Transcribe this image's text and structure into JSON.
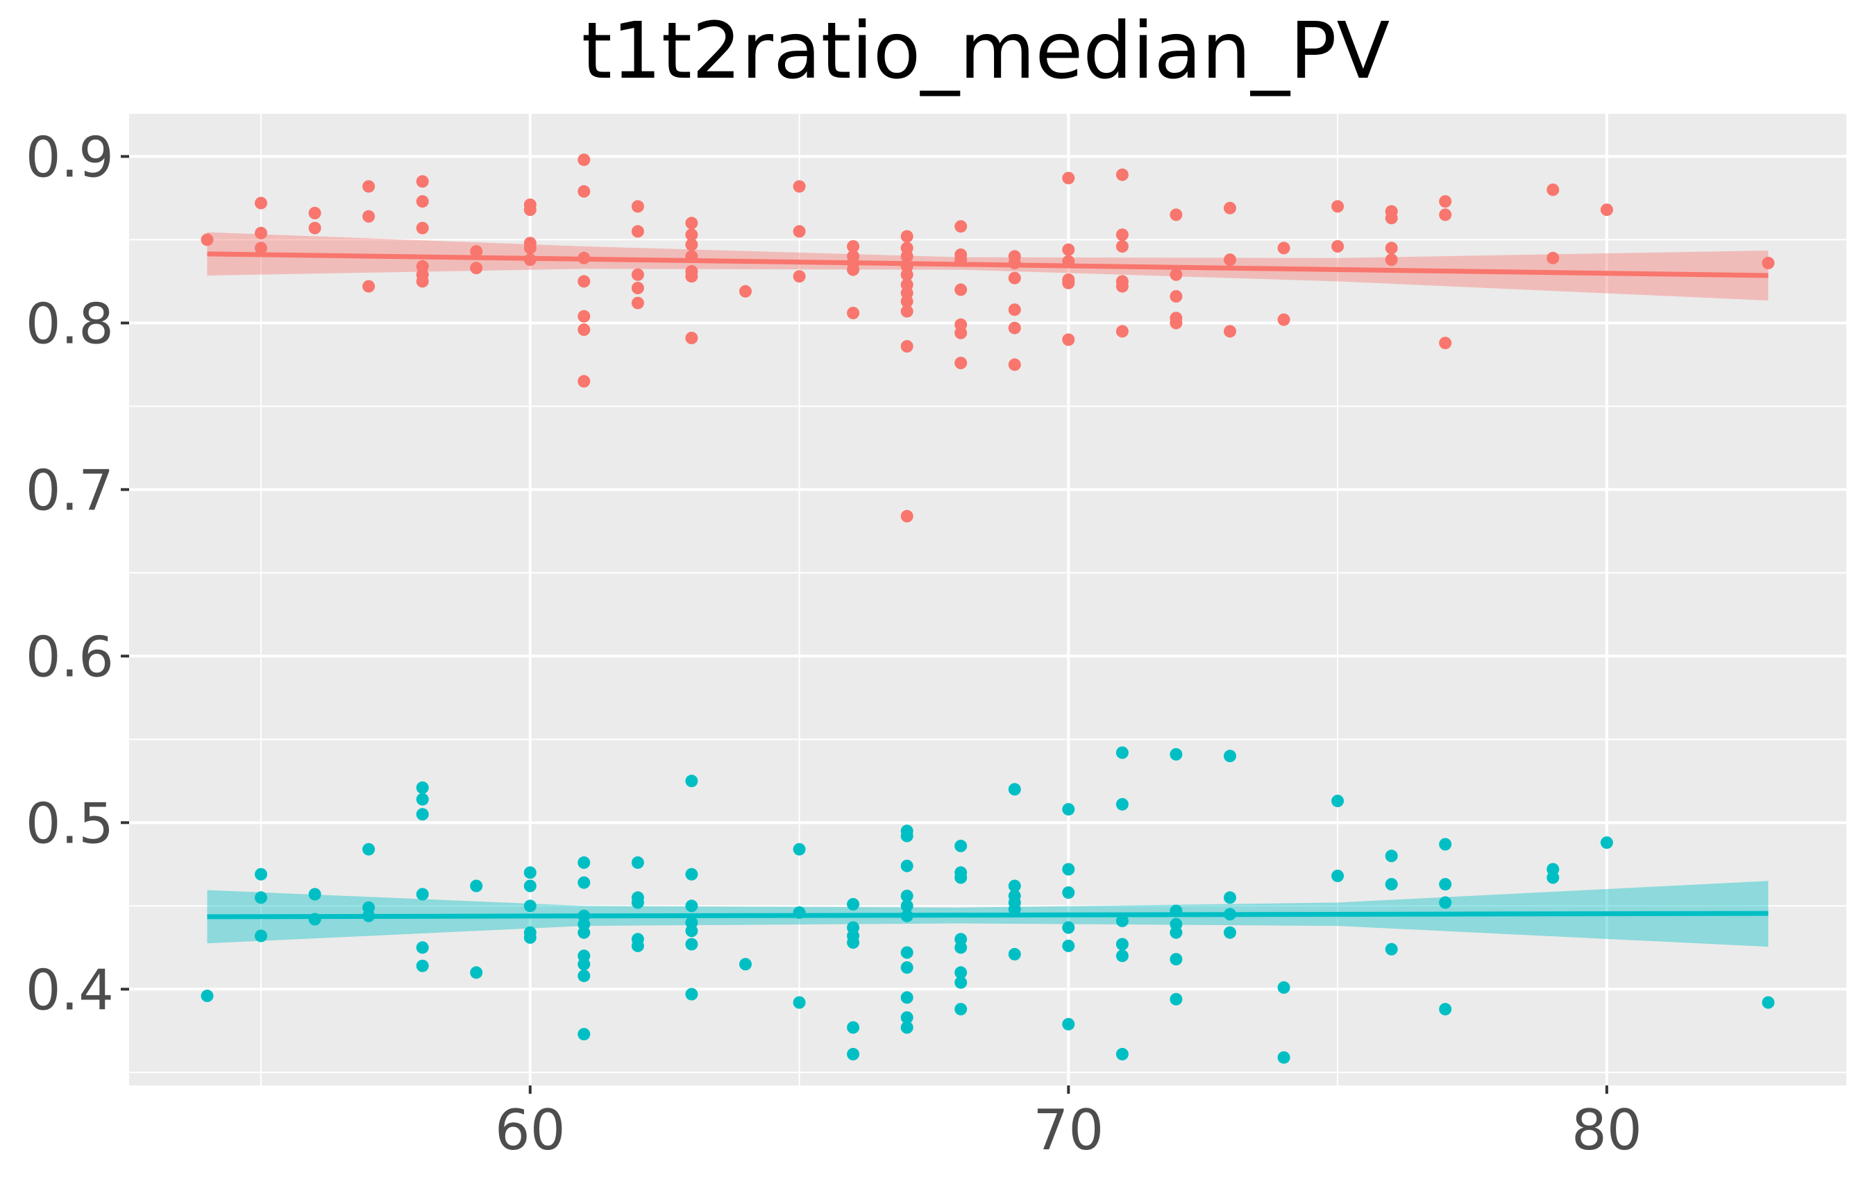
{
  "chart_data": {
    "type": "scatter",
    "title": "t1t2ratio_median_PV",
    "xlabel": "",
    "ylabel": "",
    "xlim": [
      52.55,
      84.45
    ],
    "ylim": [
      0.3422,
      0.9256
    ],
    "x_ticks": [
      60,
      70,
      80
    ],
    "x_tick_labels": [
      "60",
      "70",
      "80"
    ],
    "y_ticks": [
      0.4,
      0.5,
      0.6,
      0.7,
      0.8,
      0.9
    ],
    "y_tick_labels": [
      "0.4",
      "0.5",
      "0.6",
      "0.7",
      "0.8",
      "0.9"
    ],
    "grid": true,
    "legend": "none",
    "panel_background": "#ebebeb",
    "series": [
      {
        "color": "#f8766d",
        "points": [
          [
            54,
            0.85
          ],
          [
            55,
            0.872
          ],
          [
            55,
            0.854
          ],
          [
            55,
            0.845
          ],
          [
            56,
            0.866
          ],
          [
            56,
            0.857
          ],
          [
            57,
            0.882
          ],
          [
            57,
            0.864
          ],
          [
            57,
            0.822
          ],
          [
            58,
            0.885
          ],
          [
            58,
            0.873
          ],
          [
            58,
            0.857
          ],
          [
            58,
            0.834
          ],
          [
            58,
            0.829
          ],
          [
            58,
            0.825
          ],
          [
            59,
            0.843
          ],
          [
            59,
            0.833
          ],
          [
            60,
            0.871
          ],
          [
            60,
            0.868
          ],
          [
            60,
            0.848
          ],
          [
            60,
            0.845
          ],
          [
            60,
            0.838
          ],
          [
            61,
            0.898
          ],
          [
            61,
            0.879
          ],
          [
            61,
            0.839
          ],
          [
            61,
            0.825
          ],
          [
            61,
            0.804
          ],
          [
            61,
            0.796
          ],
          [
            61,
            0.765
          ],
          [
            62,
            0.87
          ],
          [
            62,
            0.855
          ],
          [
            62,
            0.829
          ],
          [
            62,
            0.821
          ],
          [
            62,
            0.812
          ],
          [
            63,
            0.86
          ],
          [
            63,
            0.853
          ],
          [
            63,
            0.847
          ],
          [
            63,
            0.84
          ],
          [
            63,
            0.831
          ],
          [
            63,
            0.828
          ],
          [
            63,
            0.791
          ],
          [
            64,
            0.819
          ],
          [
            65,
            0.882
          ],
          [
            65,
            0.855
          ],
          [
            65,
            0.828
          ],
          [
            66,
            0.846
          ],
          [
            66,
            0.84
          ],
          [
            66,
            0.836
          ],
          [
            66,
            0.832
          ],
          [
            66,
            0.806
          ],
          [
            67,
            0.852
          ],
          [
            67,
            0.845
          ],
          [
            67,
            0.84
          ],
          [
            67,
            0.834
          ],
          [
            67,
            0.829
          ],
          [
            67,
            0.823
          ],
          [
            67,
            0.818
          ],
          [
            67,
            0.813
          ],
          [
            67,
            0.807
          ],
          [
            67,
            0.786
          ],
          [
            67,
            0.684
          ],
          [
            68,
            0.858
          ],
          [
            68,
            0.841
          ],
          [
            68,
            0.838
          ],
          [
            68,
            0.82
          ],
          [
            68,
            0.799
          ],
          [
            68,
            0.794
          ],
          [
            68,
            0.776
          ],
          [
            69,
            0.84
          ],
          [
            69,
            0.836
          ],
          [
            69,
            0.827
          ],
          [
            69,
            0.808
          ],
          [
            69,
            0.797
          ],
          [
            69,
            0.775
          ],
          [
            70,
            0.887
          ],
          [
            70,
            0.844
          ],
          [
            70,
            0.837
          ],
          [
            70,
            0.826
          ],
          [
            70,
            0.824
          ],
          [
            70,
            0.79
          ],
          [
            71,
            0.889
          ],
          [
            71,
            0.853
          ],
          [
            71,
            0.846
          ],
          [
            71,
            0.825
          ],
          [
            71,
            0.822
          ],
          [
            71,
            0.795
          ],
          [
            72,
            0.865
          ],
          [
            72,
            0.829
          ],
          [
            72,
            0.816
          ],
          [
            72,
            0.803
          ],
          [
            72,
            0.8
          ],
          [
            73,
            0.869
          ],
          [
            73,
            0.838
          ],
          [
            73,
            0.795
          ],
          [
            74,
            0.845
          ],
          [
            74,
            0.802
          ],
          [
            75,
            0.87
          ],
          [
            75,
            0.846
          ],
          [
            76,
            0.867
          ],
          [
            76,
            0.863
          ],
          [
            76,
            0.845
          ],
          [
            76,
            0.838
          ],
          [
            77,
            0.873
          ],
          [
            77,
            0.865
          ],
          [
            77,
            0.788
          ],
          [
            79,
            0.88
          ],
          [
            79,
            0.839
          ],
          [
            80,
            0.868
          ],
          [
            83,
            0.836
          ]
        ],
        "fit": {
          "x": [
            54,
            83
          ],
          "y": [
            0.8415,
            0.8285
          ]
        },
        "ribbon": {
          "x": [
            54,
            61,
            68,
            75,
            83
          ],
          "lower": [
            0.8285,
            0.8325,
            0.832,
            0.825,
            0.8135
          ],
          "upper": [
            0.8545,
            0.846,
            0.8395,
            0.839,
            0.8435
          ]
        }
      },
      {
        "color": "#00bfc4",
        "points": [
          [
            54,
            0.396
          ],
          [
            55,
            0.469
          ],
          [
            55,
            0.455
          ],
          [
            55,
            0.432
          ],
          [
            56,
            0.457
          ],
          [
            56,
            0.442
          ],
          [
            57,
            0.484
          ],
          [
            57,
            0.449
          ],
          [
            57,
            0.444
          ],
          [
            58,
            0.521
          ],
          [
            58,
            0.514
          ],
          [
            58,
            0.505
          ],
          [
            58,
            0.457
          ],
          [
            58,
            0.425
          ],
          [
            58,
            0.414
          ],
          [
            59,
            0.462
          ],
          [
            59,
            0.41
          ],
          [
            60,
            0.47
          ],
          [
            60,
            0.462
          ],
          [
            60,
            0.45
          ],
          [
            60,
            0.434
          ],
          [
            60,
            0.431
          ],
          [
            61,
            0.476
          ],
          [
            61,
            0.464
          ],
          [
            61,
            0.444
          ],
          [
            61,
            0.439
          ],
          [
            61,
            0.434
          ],
          [
            61,
            0.42
          ],
          [
            61,
            0.415
          ],
          [
            61,
            0.408
          ],
          [
            61,
            0.373
          ],
          [
            62,
            0.476
          ],
          [
            62,
            0.455
          ],
          [
            62,
            0.452
          ],
          [
            62,
            0.43
          ],
          [
            62,
            0.426
          ],
          [
            63,
            0.525
          ],
          [
            63,
            0.469
          ],
          [
            63,
            0.45
          ],
          [
            63,
            0.44
          ],
          [
            63,
            0.435
          ],
          [
            63,
            0.427
          ],
          [
            63,
            0.397
          ],
          [
            64,
            0.415
          ],
          [
            65,
            0.484
          ],
          [
            65,
            0.446
          ],
          [
            65,
            0.392
          ],
          [
            66,
            0.451
          ],
          [
            66,
            0.437
          ],
          [
            66,
            0.432
          ],
          [
            66,
            0.428
          ],
          [
            66,
            0.377
          ],
          [
            66,
            0.361
          ],
          [
            67,
            0.495
          ],
          [
            67,
            0.492
          ],
          [
            67,
            0.474
          ],
          [
            67,
            0.456
          ],
          [
            67,
            0.45
          ],
          [
            67,
            0.444
          ],
          [
            67,
            0.422
          ],
          [
            67,
            0.413
          ],
          [
            67,
            0.395
          ],
          [
            67,
            0.383
          ],
          [
            67,
            0.377
          ],
          [
            68,
            0.486
          ],
          [
            68,
            0.47
          ],
          [
            68,
            0.467
          ],
          [
            68,
            0.43
          ],
          [
            68,
            0.425
          ],
          [
            68,
            0.41
          ],
          [
            68,
            0.404
          ],
          [
            68,
            0.388
          ],
          [
            69,
            0.52
          ],
          [
            69,
            0.462
          ],
          [
            69,
            0.456
          ],
          [
            69,
            0.452
          ],
          [
            69,
            0.448
          ],
          [
            69,
            0.421
          ],
          [
            70,
            0.508
          ],
          [
            70,
            0.472
          ],
          [
            70,
            0.458
          ],
          [
            70,
            0.437
          ],
          [
            70,
            0.426
          ],
          [
            70,
            0.379
          ],
          [
            71,
            0.542
          ],
          [
            71,
            0.511
          ],
          [
            71,
            0.441
          ],
          [
            71,
            0.427
          ],
          [
            71,
            0.42
          ],
          [
            71,
            0.361
          ],
          [
            72,
            0.541
          ],
          [
            72,
            0.447
          ],
          [
            72,
            0.439
          ],
          [
            72,
            0.434
          ],
          [
            72,
            0.418
          ],
          [
            72,
            0.394
          ],
          [
            73,
            0.54
          ],
          [
            73,
            0.455
          ],
          [
            73,
            0.445
          ],
          [
            73,
            0.434
          ],
          [
            74,
            0.401
          ],
          [
            74,
            0.359
          ],
          [
            75,
            0.513
          ],
          [
            75,
            0.468
          ],
          [
            76,
            0.48
          ],
          [
            76,
            0.463
          ],
          [
            76,
            0.424
          ],
          [
            77,
            0.487
          ],
          [
            77,
            0.463
          ],
          [
            77,
            0.452
          ],
          [
            77,
            0.388
          ],
          [
            79,
            0.472
          ],
          [
            79,
            0.467
          ],
          [
            80,
            0.488
          ],
          [
            83,
            0.392
          ]
        ],
        "fit": {
          "x": [
            54,
            83
          ],
          "y": [
            0.4435,
            0.4455
          ]
        },
        "ribbon": {
          "x": [
            54,
            61,
            68,
            75,
            83
          ],
          "lower": [
            0.4275,
            0.438,
            0.4395,
            0.438,
            0.4255
          ],
          "upper": [
            0.4595,
            0.45,
            0.449,
            0.452,
            0.465
          ]
        }
      }
    ]
  }
}
